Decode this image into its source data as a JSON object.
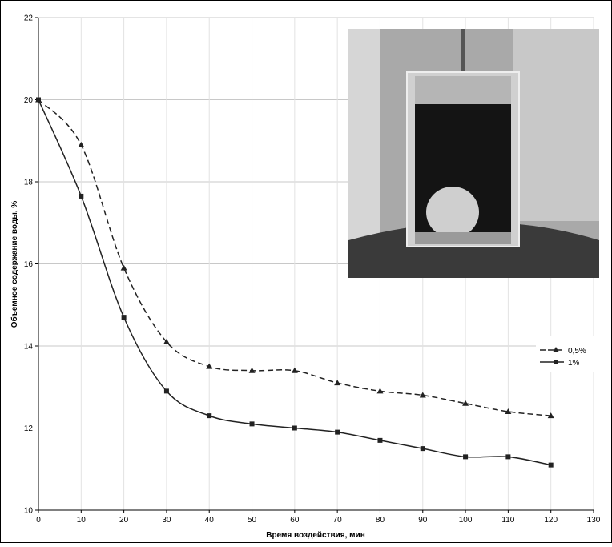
{
  "chart_data": {
    "type": "line",
    "x_label": "Время воздействия, мин",
    "y_label": "Объемное содержание воды, %",
    "x": [
      0,
      10,
      20,
      30,
      40,
      50,
      60,
      70,
      80,
      90,
      100,
      110,
      120
    ],
    "series": [
      {
        "name": "0,5%",
        "color": "#222222",
        "dash": true,
        "marker": "triangle",
        "values": [
          20.0,
          18.9,
          15.9,
          14.1,
          13.5,
          13.4,
          13.4,
          13.1,
          12.9,
          12.8,
          12.6,
          12.4,
          12.3
        ]
      },
      {
        "name": "1%",
        "color": "#222222",
        "dash": false,
        "marker": "square",
        "values": [
          20.0,
          17.65,
          14.7,
          12.9,
          12.3,
          12.1,
          12.0,
          11.9,
          11.7,
          11.5,
          11.3,
          11.3,
          11.1
        ]
      }
    ],
    "xlim": [
      0,
      130
    ],
    "xticks": [
      0,
      10,
      20,
      30,
      40,
      50,
      60,
      70,
      80,
      90,
      100,
      110,
      120,
      130
    ],
    "ylim": [
      10,
      22
    ],
    "yticks": [
      10,
      12,
      14,
      16,
      18,
      20,
      22
    ],
    "grid": true
  }
}
